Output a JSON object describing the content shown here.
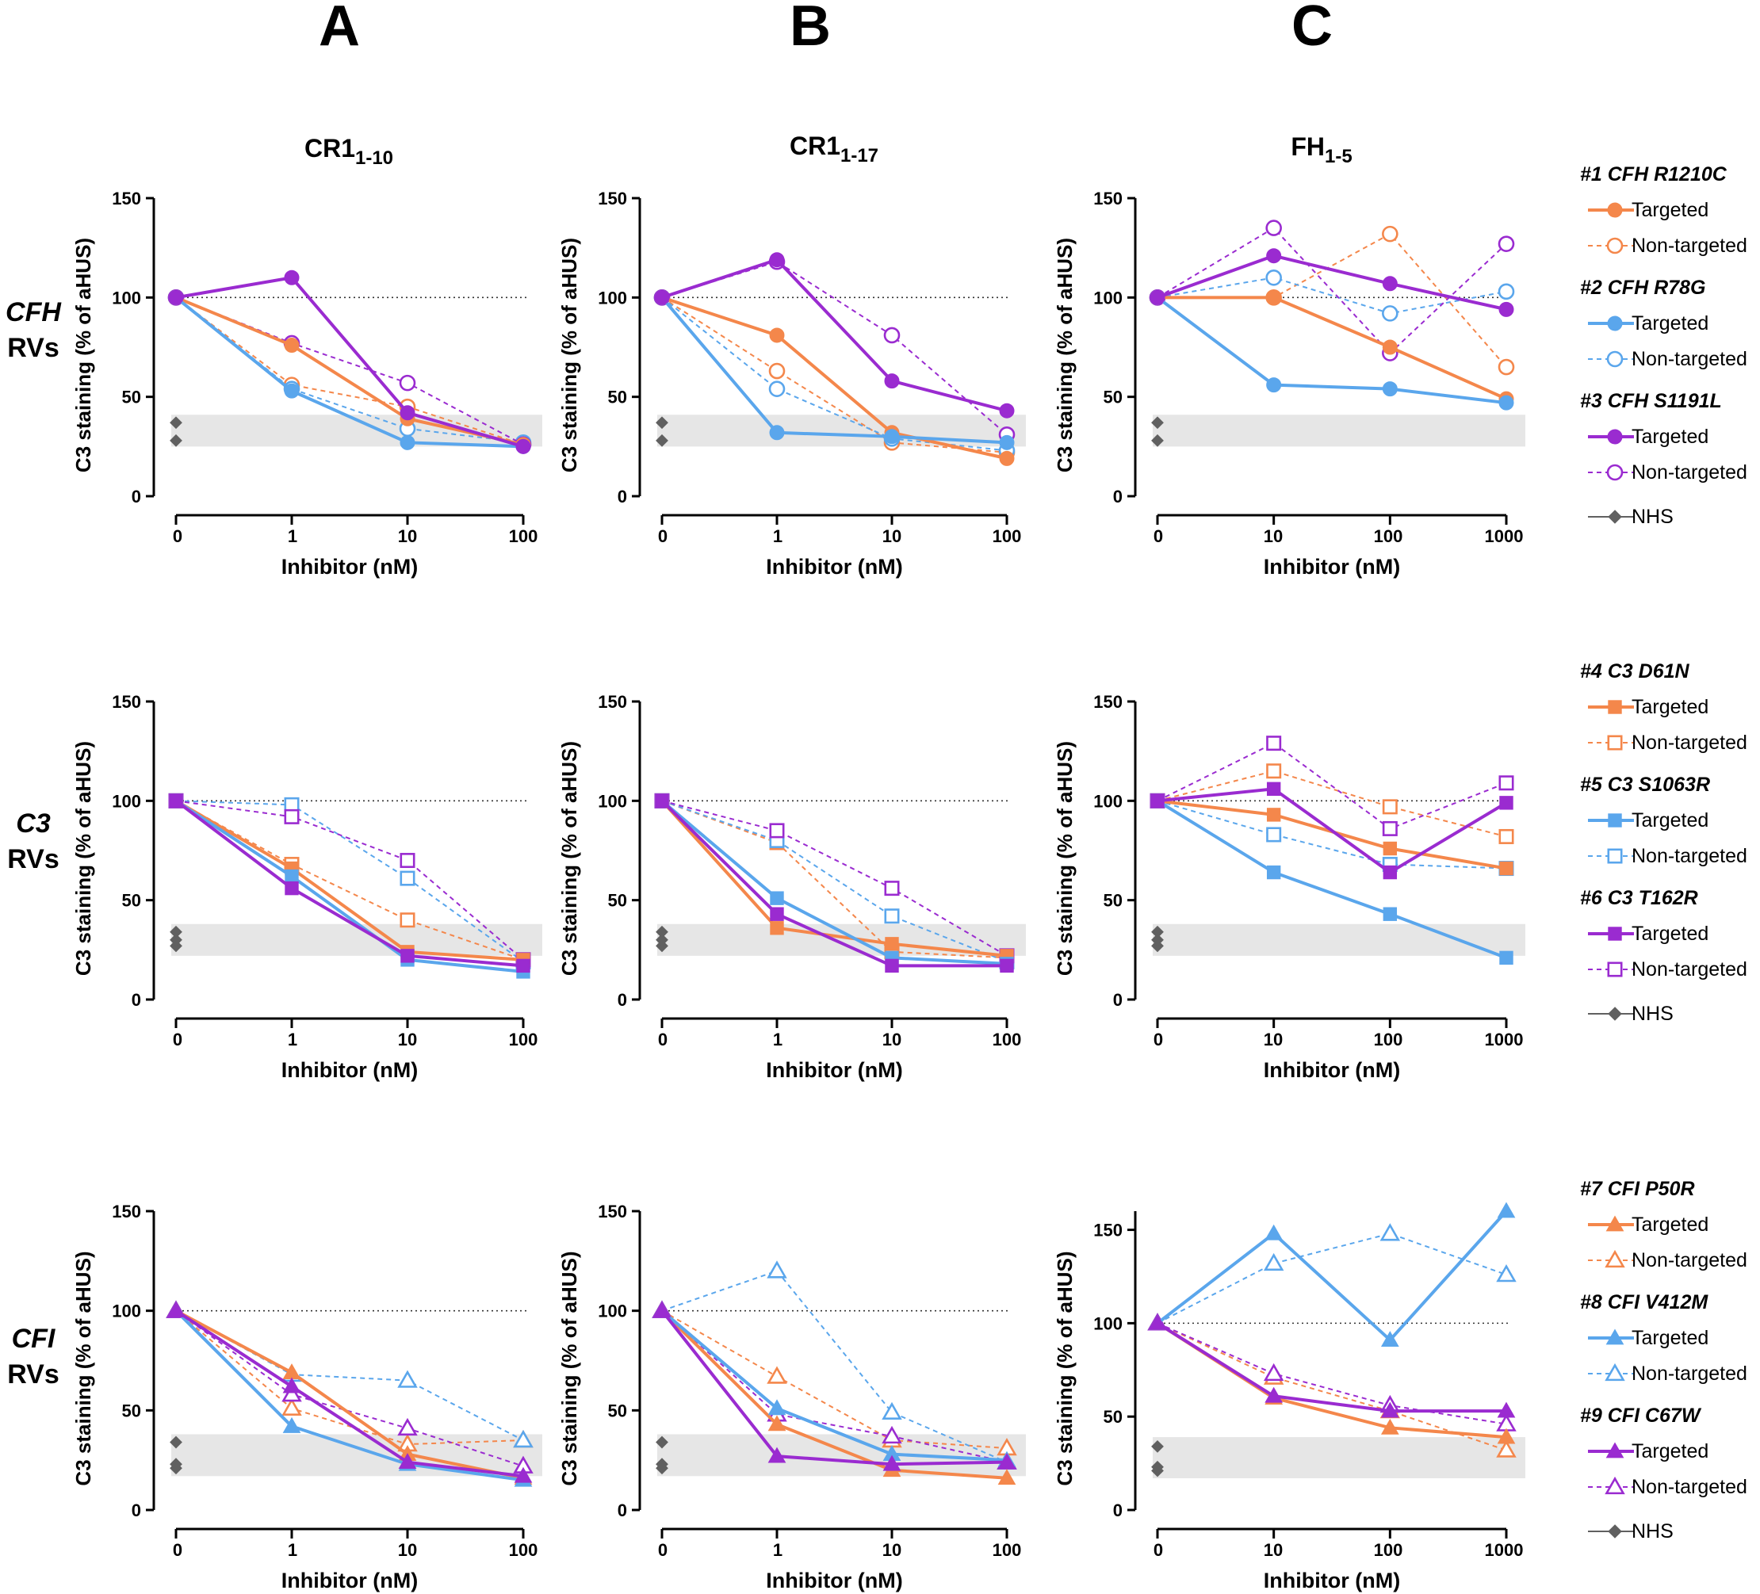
{
  "figure": {
    "column_letters": [
      "A",
      "B",
      "C"
    ],
    "column_titles": [
      {
        "main": "CR1",
        "sub": "1-10"
      },
      {
        "main": "CR1",
        "sub": "1-17"
      },
      {
        "main": "FH",
        "sub": "1-5"
      }
    ],
    "row_labels": [
      {
        "gene": "CFH",
        "suffix": "RVs"
      },
      {
        "gene": "C3",
        "suffix": "RVs"
      },
      {
        "gene": "CFI",
        "suffix": "RVs"
      }
    ],
    "ylabel": "C3 staining (% of aHUS)",
    "xlabel": "Inhibitor (nM)"
  },
  "colors": {
    "orange": "#F4874B",
    "blue": "#5AA6EC",
    "purple": "#9A2BD0",
    "nhs": "#606060",
    "band": "#e6e6e6"
  },
  "legends": [
    {
      "groups": [
        {
          "title": "#1 CFH R1210C",
          "color": "orange",
          "targeted": "Targeted",
          "nontargeted": "Non-targeted"
        },
        {
          "title": "#2 CFH R78G",
          "color": "blue",
          "targeted": "Targeted",
          "nontargeted": "Non-targeted"
        },
        {
          "title": "#3 CFH S1191L",
          "color": "purple",
          "targeted": "Targeted",
          "nontargeted": "Non-targeted"
        }
      ],
      "nhs": "NHS"
    },
    {
      "groups": [
        {
          "title": "#4 C3 D61N",
          "color": "orange",
          "targeted": "Targeted",
          "nontargeted": "Non-targeted"
        },
        {
          "title": "#5 C3 S1063R",
          "color": "blue",
          "targeted": "Targeted",
          "nontargeted": "Non-targeted"
        },
        {
          "title": "#6 C3 T162R",
          "color": "purple",
          "targeted": "Targeted",
          "nontargeted": "Non-targeted"
        }
      ],
      "nhs": "NHS"
    },
    {
      "groups": [
        {
          "title": "#7 CFI P50R",
          "color": "orange",
          "targeted": "Targeted",
          "nontargeted": "Non-targeted"
        },
        {
          "title": "#8 CFI V412M",
          "color": "blue",
          "targeted": "Targeted",
          "nontargeted": "Non-targeted"
        },
        {
          "title": "#9 CFI C67W",
          "color": "purple",
          "targeted": "Targeted",
          "nontargeted": "Non-targeted"
        }
      ],
      "nhs": "NHS"
    }
  ],
  "chart_data": [
    {
      "type": "line",
      "row": 0,
      "col": 0,
      "marker": "circle",
      "categories": [
        "0",
        "1",
        "10",
        "100"
      ],
      "ylim": [
        0,
        150
      ],
      "yticks": [
        0,
        50,
        100,
        150
      ],
      "reference_line": 100,
      "nhs_band": [
        25,
        41
      ],
      "nhs_values": [
        28,
        37
      ],
      "series": [
        {
          "color": "orange",
          "style": "targeted",
          "values": [
            100,
            76,
            39,
            26
          ]
        },
        {
          "color": "orange",
          "style": "nontargeted",
          "values": [
            100,
            56,
            45,
            26
          ]
        },
        {
          "color": "blue",
          "style": "targeted",
          "values": [
            100,
            53,
            27,
            25
          ]
        },
        {
          "color": "blue",
          "style": "nontargeted",
          "values": [
            100,
            54,
            34,
            27
          ]
        },
        {
          "color": "purple",
          "style": "targeted",
          "values": [
            100,
            110,
            42,
            25
          ]
        },
        {
          "color": "purple",
          "style": "nontargeted",
          "values": [
            100,
            77,
            57,
            26
          ]
        }
      ]
    },
    {
      "type": "line",
      "row": 0,
      "col": 1,
      "marker": "circle",
      "categories": [
        "0",
        "1",
        "10",
        "100"
      ],
      "ylim": [
        0,
        150
      ],
      "yticks": [
        0,
        50,
        100,
        150
      ],
      "reference_line": 100,
      "nhs_band": [
        25,
        41
      ],
      "nhs_values": [
        28,
        37
      ],
      "series": [
        {
          "color": "orange",
          "style": "targeted",
          "values": [
            100,
            81,
            32,
            19
          ]
        },
        {
          "color": "orange",
          "style": "nontargeted",
          "values": [
            100,
            63,
            27,
            22
          ]
        },
        {
          "color": "blue",
          "style": "targeted",
          "values": [
            100,
            32,
            30,
            27
          ]
        },
        {
          "color": "blue",
          "style": "nontargeted",
          "values": [
            100,
            54,
            29,
            23
          ]
        },
        {
          "color": "purple",
          "style": "targeted",
          "values": [
            100,
            119,
            58,
            43
          ]
        },
        {
          "color": "purple",
          "style": "nontargeted",
          "values": [
            100,
            118,
            81,
            31
          ]
        }
      ]
    },
    {
      "type": "line",
      "row": 0,
      "col": 2,
      "marker": "circle",
      "categories": [
        "0",
        "10",
        "100",
        "1000"
      ],
      "ylim": [
        0,
        150
      ],
      "yticks": [
        0,
        50,
        100,
        150
      ],
      "reference_line": 100,
      "nhs_band": [
        25,
        41
      ],
      "nhs_values": [
        28,
        37
      ],
      "series": [
        {
          "color": "orange",
          "style": "targeted",
          "values": [
            100,
            100,
            75,
            49
          ]
        },
        {
          "color": "orange",
          "style": "nontargeted",
          "values": [
            100,
            100,
            132,
            65
          ]
        },
        {
          "color": "blue",
          "style": "targeted",
          "values": [
            100,
            56,
            54,
            47
          ]
        },
        {
          "color": "blue",
          "style": "nontargeted",
          "values": [
            100,
            110,
            92,
            103
          ]
        },
        {
          "color": "purple",
          "style": "targeted",
          "values": [
            100,
            121,
            107,
            94
          ]
        },
        {
          "color": "purple",
          "style": "nontargeted",
          "values": [
            100,
            135,
            72,
            127
          ]
        }
      ]
    },
    {
      "type": "line",
      "row": 1,
      "col": 0,
      "marker": "square",
      "categories": [
        "0",
        "1",
        "10",
        "100"
      ],
      "ylim": [
        0,
        150
      ],
      "yticks": [
        0,
        50,
        100,
        150
      ],
      "reference_line": 100,
      "nhs_band": [
        22,
        38
      ],
      "nhs_values": [
        27,
        30,
        34
      ],
      "series": [
        {
          "color": "orange",
          "style": "targeted",
          "values": [
            100,
            66,
            24,
            20
          ]
        },
        {
          "color": "orange",
          "style": "nontargeted",
          "values": [
            100,
            68,
            40,
            20
          ]
        },
        {
          "color": "blue",
          "style": "targeted",
          "values": [
            100,
            62,
            20,
            14
          ]
        },
        {
          "color": "blue",
          "style": "nontargeted",
          "values": [
            100,
            98,
            61,
            19
          ]
        },
        {
          "color": "purple",
          "style": "targeted",
          "values": [
            100,
            56,
            22,
            17
          ]
        },
        {
          "color": "purple",
          "style": "nontargeted",
          "values": [
            100,
            92,
            70,
            20
          ]
        }
      ]
    },
    {
      "type": "line",
      "row": 1,
      "col": 1,
      "marker": "square",
      "categories": [
        "0",
        "1",
        "10",
        "100"
      ],
      "ylim": [
        0,
        150
      ],
      "yticks": [
        0,
        50,
        100,
        150
      ],
      "reference_line": 100,
      "nhs_band": [
        22,
        38
      ],
      "nhs_values": [
        27,
        30,
        34
      ],
      "series": [
        {
          "color": "orange",
          "style": "targeted",
          "values": [
            100,
            36,
            28,
            22
          ]
        },
        {
          "color": "orange",
          "style": "nontargeted",
          "values": [
            100,
            79,
            24,
            21
          ]
        },
        {
          "color": "blue",
          "style": "targeted",
          "values": [
            100,
            51,
            21,
            18
          ]
        },
        {
          "color": "blue",
          "style": "nontargeted",
          "values": [
            100,
            80,
            42,
            19
          ]
        },
        {
          "color": "purple",
          "style": "targeted",
          "values": [
            100,
            43,
            17,
            17
          ]
        },
        {
          "color": "purple",
          "style": "nontargeted",
          "values": [
            100,
            85,
            56,
            22
          ]
        }
      ]
    },
    {
      "type": "line",
      "row": 1,
      "col": 2,
      "marker": "square",
      "categories": [
        "0",
        "10",
        "100",
        "1000"
      ],
      "ylim": [
        0,
        150
      ],
      "yticks": [
        0,
        50,
        100,
        150
      ],
      "reference_line": 100,
      "nhs_band": [
        22,
        38
      ],
      "nhs_values": [
        27,
        30,
        34
      ],
      "series": [
        {
          "color": "orange",
          "style": "targeted",
          "values": [
            100,
            93,
            76,
            66
          ]
        },
        {
          "color": "orange",
          "style": "nontargeted",
          "values": [
            100,
            115,
            97,
            82
          ]
        },
        {
          "color": "blue",
          "style": "targeted",
          "values": [
            100,
            64,
            43,
            21
          ]
        },
        {
          "color": "blue",
          "style": "nontargeted",
          "values": [
            100,
            83,
            68,
            66
          ]
        },
        {
          "color": "purple",
          "style": "targeted",
          "values": [
            100,
            106,
            64,
            99
          ]
        },
        {
          "color": "purple",
          "style": "nontargeted",
          "values": [
            100,
            129,
            86,
            109
          ]
        }
      ]
    },
    {
      "type": "line",
      "row": 2,
      "col": 0,
      "marker": "triangle",
      "categories": [
        "0",
        "1",
        "10",
        "100"
      ],
      "ylim": [
        0,
        150
      ],
      "yticks": [
        0,
        50,
        100,
        150
      ],
      "reference_line": 100,
      "nhs_band": [
        17,
        38
      ],
      "nhs_values": [
        21,
        23,
        34
      ],
      "series": [
        {
          "color": "orange",
          "style": "targeted",
          "values": [
            100,
            69,
            28,
            16
          ]
        },
        {
          "color": "orange",
          "style": "nontargeted",
          "values": [
            100,
            51,
            33,
            35
          ]
        },
        {
          "color": "blue",
          "style": "targeted",
          "values": [
            100,
            42,
            23,
            15
          ]
        },
        {
          "color": "blue",
          "style": "nontargeted",
          "values": [
            100,
            68,
            65,
            35
          ]
        },
        {
          "color": "purple",
          "style": "targeted",
          "values": [
            100,
            62,
            24,
            17
          ]
        },
        {
          "color": "purple",
          "style": "nontargeted",
          "values": [
            100,
            58,
            41,
            22
          ]
        }
      ]
    },
    {
      "type": "line",
      "row": 2,
      "col": 1,
      "marker": "triangle",
      "categories": [
        "0",
        "1",
        "10",
        "100"
      ],
      "ylim": [
        0,
        150
      ],
      "yticks": [
        0,
        50,
        100,
        150
      ],
      "reference_line": 100,
      "nhs_band": [
        17,
        38
      ],
      "nhs_values": [
        21,
        23,
        34
      ],
      "series": [
        {
          "color": "orange",
          "style": "targeted",
          "values": [
            100,
            43,
            20,
            16
          ]
        },
        {
          "color": "orange",
          "style": "nontargeted",
          "values": [
            100,
            67,
            35,
            31
          ]
        },
        {
          "color": "blue",
          "style": "targeted",
          "values": [
            100,
            51,
            28,
            25
          ]
        },
        {
          "color": "blue",
          "style": "nontargeted",
          "values": [
            100,
            120,
            49,
            24
          ]
        },
        {
          "color": "purple",
          "style": "targeted",
          "values": [
            100,
            27,
            23,
            24
          ]
        },
        {
          "color": "purple",
          "style": "nontargeted",
          "values": [
            100,
            48,
            37,
            24
          ]
        }
      ]
    },
    {
      "type": "line",
      "row": 2,
      "col": 2,
      "marker": "triangle",
      "categories": [
        "0",
        "10",
        "100",
        "1000"
      ],
      "ylim": [
        0,
        160
      ],
      "yticks": [
        0,
        50,
        100,
        150
      ],
      "reference_line": 100,
      "nhs_band": [
        17,
        39
      ],
      "nhs_values": [
        21,
        23,
        34
      ],
      "series": [
        {
          "color": "orange",
          "style": "targeted",
          "values": [
            100,
            60,
            44,
            39
          ]
        },
        {
          "color": "orange",
          "style": "nontargeted",
          "values": [
            100,
            71,
            53,
            32
          ]
        },
        {
          "color": "blue",
          "style": "targeted",
          "values": [
            100,
            148,
            91,
            160
          ]
        },
        {
          "color": "blue",
          "style": "nontargeted",
          "values": [
            100,
            132,
            148,
            126
          ]
        },
        {
          "color": "purple",
          "style": "targeted",
          "values": [
            100,
            61,
            53,
            53
          ]
        },
        {
          "color": "purple",
          "style": "nontargeted",
          "values": [
            100,
            73,
            56,
            46
          ]
        }
      ]
    }
  ]
}
